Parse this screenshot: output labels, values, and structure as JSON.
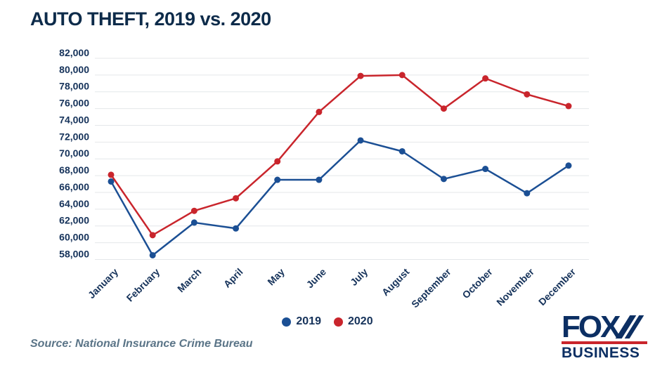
{
  "title": "AUTO THEFT, 2019 vs. 2020",
  "chart_data": {
    "type": "line",
    "categories": [
      "January",
      "February",
      "March",
      "April",
      "May",
      "June",
      "July",
      "August",
      "September",
      "October",
      "November",
      "December"
    ],
    "series": [
      {
        "name": "2019",
        "color": "#1b4f94",
        "values": [
          67300,
          58500,
          62400,
          61700,
          67500,
          67500,
          72200,
          70900,
          67600,
          68800,
          65900,
          69200
        ]
      },
      {
        "name": "2020",
        "color": "#c9252c",
        "values": [
          68100,
          60900,
          63800,
          65300,
          69700,
          75600,
          79900,
          80000,
          76000,
          79600,
          77700,
          76300
        ]
      }
    ],
    "title": "AUTO THEFT, 2019 vs. 2020",
    "xlabel": "",
    "ylabel": "",
    "ylim": [
      58000,
      82000
    ],
    "ytick_step": 2000,
    "ytick_labels": [
      "82,000",
      "80,000",
      "78,000",
      "76,000",
      "74,000",
      "72,000",
      "70,000",
      "68,000",
      "66,000",
      "64,000",
      "62,000",
      "60,000",
      "58,000"
    ],
    "grid": true,
    "legend_position": "bottom-center"
  },
  "legend": {
    "items": [
      {
        "label": "2019",
        "color": "#1b4f94"
      },
      {
        "label": "2020",
        "color": "#c9252c"
      }
    ]
  },
  "source": "Source: National Insurance Crime Bureau",
  "logo": {
    "line1": "FOX",
    "line2": "BUSINESS",
    "navy": "#0c2f63",
    "red": "#c9252c"
  },
  "colors": {
    "title": "#0d2b4a",
    "axis_text": "#15325a",
    "gridline": "#e4e7ea",
    "background": "#ffffff"
  }
}
